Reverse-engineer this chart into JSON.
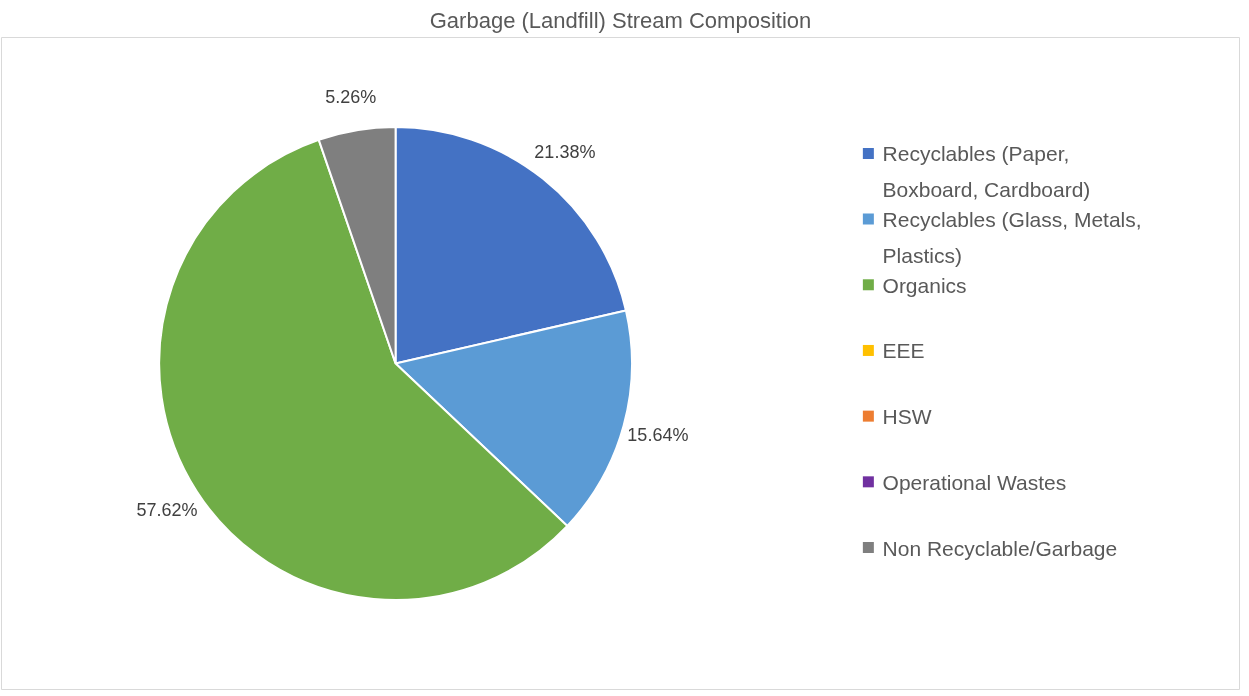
{
  "chart_data": {
    "type": "pie",
    "title": "Garbage (Landfill) Stream Composition",
    "categories": [
      "Recyclables (Paper, Boxboard, Cardboard)",
      "Recyclables (Glass, Metals, Plastics)",
      "Organics",
      "EEE",
      "HSW",
      "Operational Wastes",
      "Non Recyclable/Garbage"
    ],
    "values": [
      21.38,
      15.64,
      57.62,
      0,
      0,
      0,
      5.26
    ],
    "colors": [
      "#4472c4",
      "#5b9bd5",
      "#70ad47",
      "#ffc000",
      "#ed7d31",
      "#7030a0",
      "#7f7f7f"
    ],
    "value_labels": [
      "21.38%",
      "15.64%",
      "57.62%",
      null,
      null,
      null,
      "5.26%"
    ],
    "legend": "right"
  }
}
